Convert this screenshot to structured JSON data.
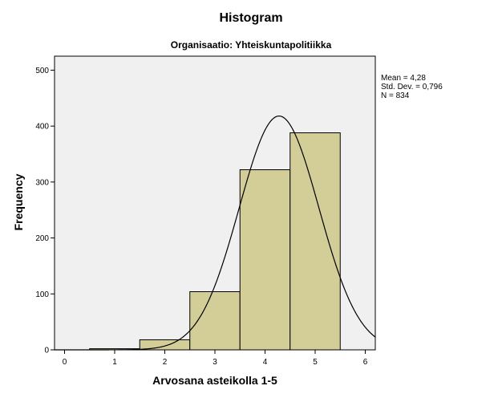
{
  "chart_data": {
    "type": "bar",
    "title": "Histogram",
    "subtitle": "Organisaatio: Yhteiskuntapolitiikka",
    "xlabel": "Arvosana asteikolla 1-5",
    "ylabel": "Frequency",
    "xlim": [
      -0.2,
      6.2
    ],
    "ylim": [
      0,
      525
    ],
    "x_ticks": [
      "0",
      "1",
      "2",
      "3",
      "4",
      "5",
      "6"
    ],
    "y_ticks": [
      "0",
      "100",
      "200",
      "300",
      "400",
      "500"
    ],
    "categories": [
      "1",
      "2",
      "3",
      "4",
      "5"
    ],
    "values": [
      2,
      18,
      104,
      322,
      388
    ],
    "normal_curve": {
      "mean": 4.28,
      "sd": 0.796,
      "n": 834
    },
    "stats": {
      "mean": "Mean = 4,28",
      "sd": "Std. Dev. = 0,796",
      "n": "N = 834"
    },
    "colors": {
      "bar_fill": "#d3cd98",
      "bar_stroke": "#000000",
      "plot_bg": "#f0f0f0",
      "curve": "#000000"
    }
  }
}
